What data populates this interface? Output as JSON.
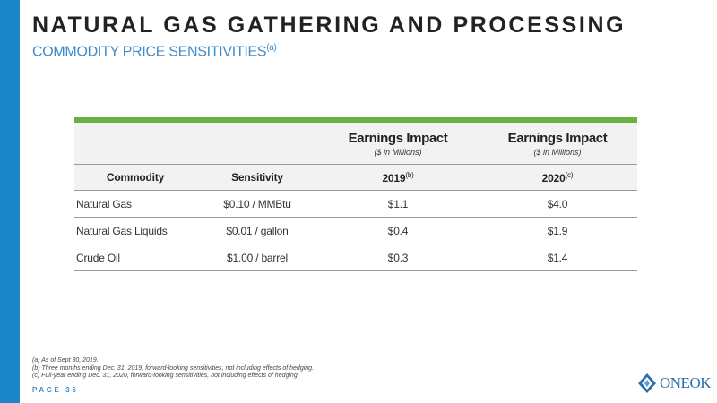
{
  "header": {
    "title": "NATURAL GAS GATHERING AND PROCESSING",
    "subtitle": "COMMODITY PRICE SENSITIVITIES",
    "subtitle_note": "(a)"
  },
  "table": {
    "impact_headers": [
      {
        "label": "Earnings Impact",
        "sublabel": "($ in Millions)"
      },
      {
        "label": "Earnings Impact",
        "sublabel": "($ in Millions)"
      }
    ],
    "columns": [
      {
        "label": "Commodity",
        "note": ""
      },
      {
        "label": "Sensitivity",
        "note": ""
      },
      {
        "label": "2019",
        "note": "(b)"
      },
      {
        "label": "2020",
        "note": "(c)"
      }
    ],
    "rows": [
      {
        "commodity": "Natural Gas",
        "sensitivity": "$0.10 / MMBtu",
        "y2019": "$1.1",
        "y2020": "$4.0"
      },
      {
        "commodity": "Natural Gas Liquids",
        "sensitivity": "$0.01 / gallon",
        "y2019": "$0.4",
        "y2020": "$1.9"
      },
      {
        "commodity": "Crude Oil",
        "sensitivity": "$1.00 / barrel",
        "y2019": "$0.3",
        "y2020": "$1.4"
      }
    ]
  },
  "footnotes": [
    "(a) As of Sept 30, 2019.",
    "(b) Three months ending Dec. 31, 2019, forward-looking sensitivities, not including effects of hedging.",
    "(c) Full-year ending Dec. 31, 2020, forward-looking sensitivities, not including effects of hedging."
  ],
  "footer": {
    "page_label": "PAGE 36",
    "logo_text": "ONEOK"
  },
  "colors": {
    "accent_blue": "#1a86c8",
    "subtitle_blue": "#3f8bc8",
    "accent_green": "#6ab03e",
    "header_gray": "#f2f2f2"
  },
  "icons": [
    "oneok-logo-icon"
  ]
}
